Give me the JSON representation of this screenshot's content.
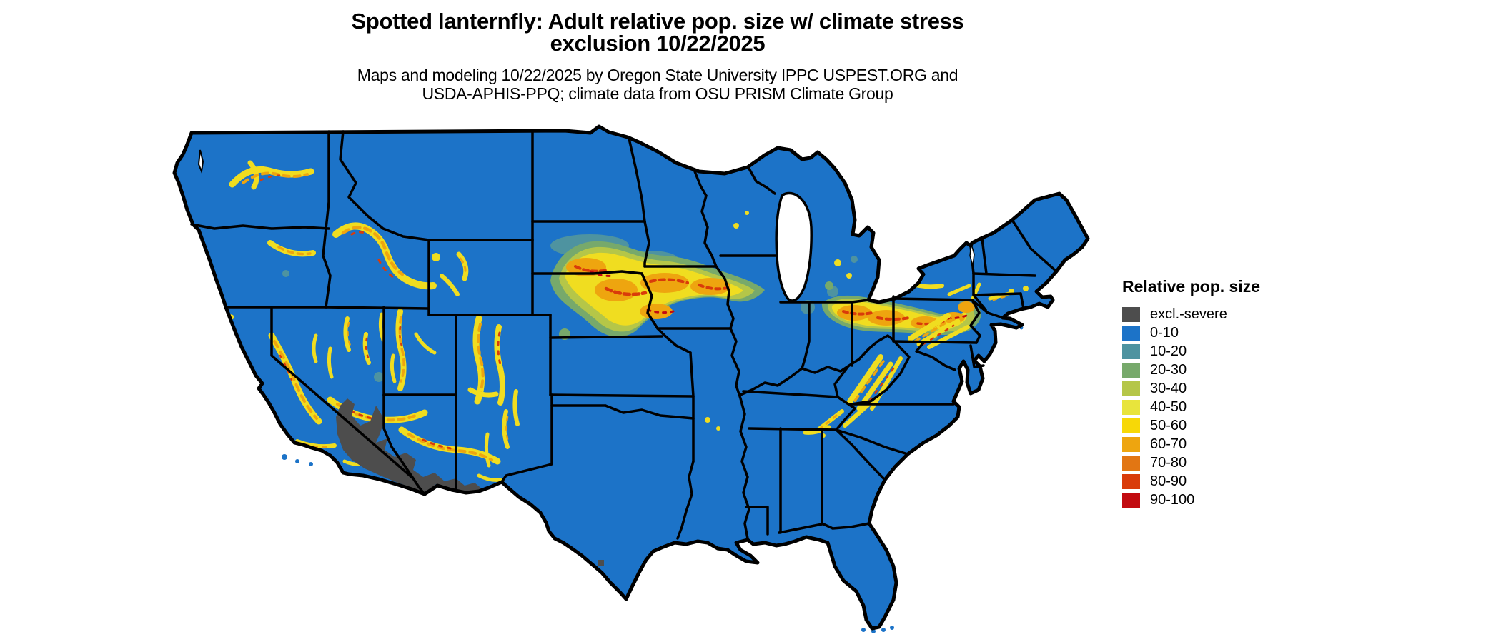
{
  "title": {
    "line1": "Spotted lanternfly: Adult relative pop. size w/ climate stress",
    "line2": "exclusion 10/22/2025"
  },
  "subtitle": {
    "line1": "Maps and modeling 10/22/2025 by Oregon State University IPPC USPEST.ORG and",
    "line2": "USDA-APHIS-PPQ; climate data from OSU PRISM Climate Group"
  },
  "legend": {
    "title": "Relative pop. size",
    "items": [
      {
        "label": "excl.-severe",
        "color": "#4d4d4d"
      },
      {
        "label": "0-10",
        "color": "#1c73c8"
      },
      {
        "label": "10-20",
        "color": "#4e93a0"
      },
      {
        "label": "20-30",
        "color": "#77a96b"
      },
      {
        "label": "30-40",
        "color": "#b5c648"
      },
      {
        "label": "40-50",
        "color": "#e8e43c"
      },
      {
        "label": "50-60",
        "color": "#f7d807"
      },
      {
        "label": "60-70",
        "color": "#eea50f"
      },
      {
        "label": "70-80",
        "color": "#e27613"
      },
      {
        "label": "80-90",
        "color": "#d93b0a"
      },
      {
        "label": "90-100",
        "color": "#c20b10"
      }
    ]
  },
  "map": {
    "colors": {
      "land": "#1c73c8",
      "state_border": "#000000",
      "excluded_region": "#4d4d4d",
      "background": "#ffffff"
    }
  }
}
